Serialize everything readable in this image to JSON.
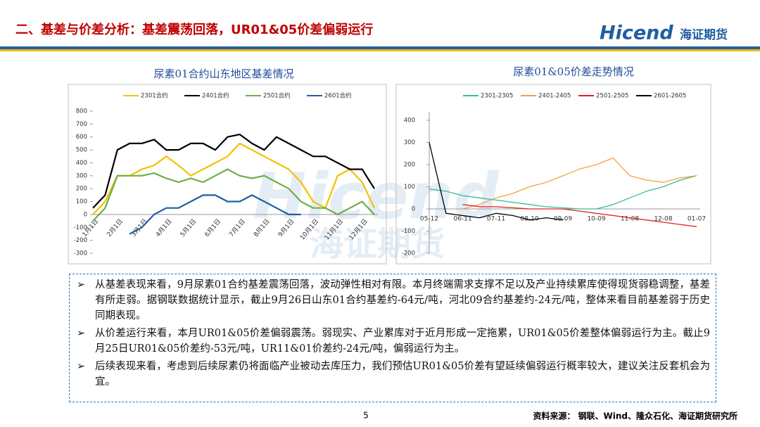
{
  "header": {
    "title": "二、基差与价差分析：基差震荡回落，UR01&05价差偏弱运行",
    "logo": "Hicend",
    "logo_cn": "海证期货"
  },
  "watermark": {
    "text": "Hicend",
    "text_cn": "海证期货"
  },
  "chart_data": [
    {
      "type": "line",
      "title": "尿素01合约山东地区基差情况",
      "categories": [
        "1月1日",
        null,
        "2月1日",
        null,
        "3月1日",
        null,
        "4月1日",
        null,
        "5月1日",
        null,
        "6月1日",
        null,
        "7月1日",
        null,
        "8月1日",
        null,
        "9月1日",
        null,
        "10月1日",
        null,
        "11月1日",
        null,
        "12月1日",
        null
      ],
      "series": [
        {
          "name": "2301合约",
          "color": "#f2c200",
          "values": [
            0,
            100,
            300,
            300,
            350,
            380,
            450,
            380,
            300,
            350,
            400,
            450,
            550,
            500,
            450,
            400,
            350,
            250,
            100,
            50,
            300,
            350,
            250,
            50
          ]
        },
        {
          "name": "2401合约",
          "color": "#000000",
          "values": [
            50,
            150,
            500,
            550,
            550,
            580,
            500,
            500,
            550,
            550,
            500,
            600,
            620,
            550,
            500,
            600,
            550,
            500,
            450,
            450,
            400,
            350,
            350,
            200
          ]
        },
        {
          "name": "2501合约",
          "color": "#70ad47",
          "values": [
            -50,
            50,
            300,
            300,
            300,
            320,
            280,
            250,
            280,
            250,
            300,
            350,
            300,
            280,
            300,
            250,
            200,
            100,
            50,
            50,
            0,
            50,
            100,
            0
          ]
        },
        {
          "name": "2601合约",
          "color": "#1f5fa0",
          "values": [
            null,
            null,
            null,
            -150,
            -100,
            0,
            50,
            50,
            100,
            150,
            150,
            100,
            100,
            150,
            100,
            50,
            0,
            0,
            null,
            null,
            null,
            null,
            null,
            null
          ]
        }
      ],
      "ylim": [
        -300,
        800
      ],
      "yticks": [
        -300,
        -200,
        -100,
        0,
        100,
        200,
        300,
        400,
        500,
        600,
        700,
        800
      ]
    },
    {
      "type": "line",
      "title": "尿素01&05价差走势情况",
      "categories": [
        "05-12",
        null,
        "06-11",
        null,
        "07-11",
        null,
        "08-10",
        null,
        "09-09",
        null,
        "10-09",
        null,
        "11-08",
        null,
        "12-08",
        null,
        "01-07"
      ],
      "series": [
        {
          "name": "2301-2305",
          "color": "#3cb89a",
          "values": [
            90,
            80,
            60,
            50,
            40,
            30,
            20,
            10,
            5,
            0,
            0,
            20,
            50,
            80,
            100,
            130,
            150
          ]
        },
        {
          "name": "2401-2405",
          "color": "#f4a040",
          "values": [
            null,
            null,
            0,
            20,
            50,
            70,
            100,
            120,
            150,
            180,
            200,
            230,
            150,
            130,
            120,
            140,
            150
          ]
        },
        {
          "name": "2501-2505",
          "color": "#e02020",
          "values": [
            null,
            null,
            20,
            10,
            10,
            5,
            0,
            0,
            0,
            -10,
            -20,
            -30,
            -40,
            -50,
            -60,
            -70,
            -80
          ]
        },
        {
          "name": "2601-2605",
          "color": "#000000",
          "values": [
            300,
            -20,
            -30,
            -40,
            -20,
            -30,
            -50,
            -40,
            -50,
            null,
            null,
            null,
            null,
            null,
            null,
            null,
            null
          ]
        }
      ],
      "ylim": [
        -200,
        400
      ],
      "yticks": [
        -200,
        -100,
        0,
        100,
        200,
        300,
        400
      ]
    }
  ],
  "bullets": [
    "从基差表现来看，9月尿素01合约基差震荡回落，波动弹性相对有限。本月终端需求支撑不足以及产业持续累库使得现货弱稳调整，基差有所走弱。据钢联数据统计显示，截止9月26日山东01合约基差约-64元/吨，河北09合约基差约-24元/吨，整体来看目前基差弱于历史同期表现。",
    "从价差运行来看，本月UR01&05价差偏弱震荡。弱现实、产业累库对于近月形成一定拖累，UR01&05价差整体偏弱运行为主。截止9月25日UR01&05价差约-53元/吨，UR11&01价差约-24元/吨，偏弱运行为主。",
    "后续表现来看，考虑到后续尿素仍将面临产业被动去库压力，我们预估UR01&05价差有望延续偏弱运行概率较大，建议关注反套机会为宜。"
  ],
  "footer": {
    "page": "5",
    "source": "资料来源：   钢联、Wind、隆众石化、海证期货研究所"
  }
}
